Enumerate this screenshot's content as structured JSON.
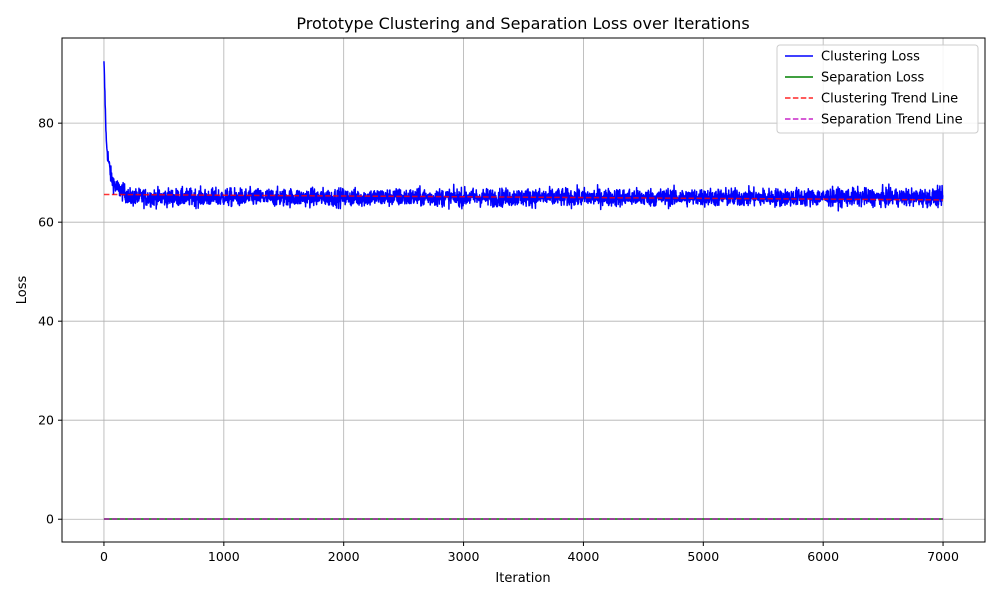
{
  "chart_data": {
    "type": "line",
    "title": "Prototype Clustering and Separation Loss over Iterations",
    "xlabel": "Iteration",
    "ylabel": "Loss",
    "xlim": [
      -350,
      7350
    ],
    "ylim": [
      -4.6,
      97.2
    ],
    "xticks": [
      0,
      1000,
      2000,
      3000,
      4000,
      5000,
      6000,
      7000
    ],
    "yticks": [
      0,
      20,
      40,
      60,
      80
    ],
    "grid": true,
    "legend_position": "top-right",
    "series": [
      {
        "name": "Clustering Loss",
        "color": "#0000ff",
        "style": "solid",
        "x_range": [
          0,
          7000
        ],
        "start_value": 92.5,
        "plateau_mean": 65.0,
        "noise_band": [
          62.0,
          68.0
        ],
        "decay_points": [
          [
            0,
            92.5
          ],
          [
            10,
            84
          ],
          [
            20,
            76
          ],
          [
            40,
            72
          ],
          [
            60,
            69
          ],
          [
            100,
            67
          ],
          [
            200,
            65.5
          ]
        ]
      },
      {
        "name": "Separation Loss",
        "color": "#008000",
        "style": "solid",
        "x": [
          0,
          7000
        ],
        "y": [
          0.05,
          0.05
        ]
      },
      {
        "name": "Clustering Trend Line",
        "color": "#ff0000",
        "style": "dashed",
        "x": [
          0,
          7000
        ],
        "y": [
          65.6,
          64.5
        ]
      },
      {
        "name": "Separation Trend Line",
        "color": "#bf00bf",
        "style": "dashed",
        "x": [
          0,
          7000
        ],
        "y": [
          0.05,
          0.05
        ]
      }
    ]
  }
}
